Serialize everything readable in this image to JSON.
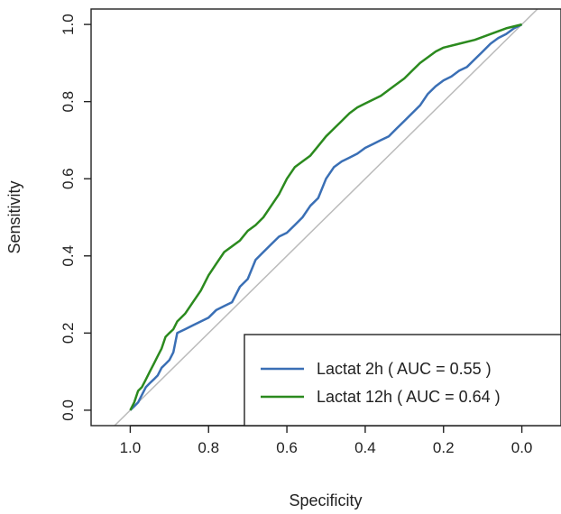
{
  "chart_data": {
    "type": "line",
    "title": "",
    "xlabel": "Specificity",
    "ylabel": "Sensitivity",
    "x_reversed": true,
    "xlim": [
      1.1,
      -0.1
    ],
    "ylim": [
      -0.04,
      1.04
    ],
    "x_ticks": [
      1.0,
      0.8,
      0.6,
      0.4,
      0.2,
      0.0
    ],
    "x_tick_labels": [
      "1.0",
      "0.8",
      "0.6",
      "0.4",
      "0.2",
      "0.0"
    ],
    "y_ticks": [
      0.0,
      0.2,
      0.4,
      0.6,
      0.8,
      1.0
    ],
    "y_tick_labels": [
      "0.0",
      "0.2",
      "0.4",
      "0.6",
      "0.8",
      "1.0"
    ],
    "grid": false,
    "legend_position": "bottom-right",
    "reference_line": {
      "from": [
        1.0,
        0.0
      ],
      "to": [
        0.0,
        1.0
      ],
      "color": "#bbbbbb"
    },
    "series": [
      {
        "name": "Lactat 2h ( AUC = 0.55 )",
        "color": "#3a6fb5",
        "points": [
          [
            1.0,
            0.0
          ],
          [
            0.99,
            0.01
          ],
          [
            0.98,
            0.02
          ],
          [
            0.97,
            0.04
          ],
          [
            0.96,
            0.06
          ],
          [
            0.95,
            0.07
          ],
          [
            0.94,
            0.08
          ],
          [
            0.93,
            0.09
          ],
          [
            0.92,
            0.11
          ],
          [
            0.91,
            0.12
          ],
          [
            0.9,
            0.13
          ],
          [
            0.89,
            0.15
          ],
          [
            0.88,
            0.2
          ],
          [
            0.86,
            0.21
          ],
          [
            0.84,
            0.22
          ],
          [
            0.82,
            0.23
          ],
          [
            0.8,
            0.24
          ],
          [
            0.78,
            0.26
          ],
          [
            0.76,
            0.27
          ],
          [
            0.74,
            0.28
          ],
          [
            0.72,
            0.32
          ],
          [
            0.7,
            0.34
          ],
          [
            0.68,
            0.39
          ],
          [
            0.66,
            0.41
          ],
          [
            0.64,
            0.43
          ],
          [
            0.62,
            0.45
          ],
          [
            0.6,
            0.46
          ],
          [
            0.58,
            0.48
          ],
          [
            0.56,
            0.5
          ],
          [
            0.54,
            0.53
          ],
          [
            0.52,
            0.55
          ],
          [
            0.5,
            0.6
          ],
          [
            0.48,
            0.63
          ],
          [
            0.46,
            0.645
          ],
          [
            0.44,
            0.655
          ],
          [
            0.42,
            0.665
          ],
          [
            0.4,
            0.68
          ],
          [
            0.38,
            0.69
          ],
          [
            0.36,
            0.7
          ],
          [
            0.34,
            0.71
          ],
          [
            0.32,
            0.73
          ],
          [
            0.3,
            0.75
          ],
          [
            0.28,
            0.77
          ],
          [
            0.26,
            0.79
          ],
          [
            0.24,
            0.82
          ],
          [
            0.22,
            0.84
          ],
          [
            0.2,
            0.855
          ],
          [
            0.18,
            0.865
          ],
          [
            0.16,
            0.88
          ],
          [
            0.14,
            0.89
          ],
          [
            0.12,
            0.91
          ],
          [
            0.1,
            0.93
          ],
          [
            0.08,
            0.95
          ],
          [
            0.06,
            0.965
          ],
          [
            0.04,
            0.975
          ],
          [
            0.02,
            0.99
          ],
          [
            0.0,
            1.0
          ]
        ]
      },
      {
        "name": "Lactat 12h ( AUC = 0.64 )",
        "color": "#2b8a1e",
        "points": [
          [
            1.0,
            0.0
          ],
          [
            0.99,
            0.02
          ],
          [
            0.98,
            0.05
          ],
          [
            0.97,
            0.06
          ],
          [
            0.96,
            0.08
          ],
          [
            0.95,
            0.1
          ],
          [
            0.94,
            0.12
          ],
          [
            0.93,
            0.14
          ],
          [
            0.92,
            0.16
          ],
          [
            0.91,
            0.19
          ],
          [
            0.9,
            0.2
          ],
          [
            0.89,
            0.21
          ],
          [
            0.88,
            0.23
          ],
          [
            0.86,
            0.25
          ],
          [
            0.84,
            0.28
          ],
          [
            0.82,
            0.31
          ],
          [
            0.8,
            0.35
          ],
          [
            0.78,
            0.38
          ],
          [
            0.76,
            0.41
          ],
          [
            0.72,
            0.44
          ],
          [
            0.7,
            0.465
          ],
          [
            0.68,
            0.48
          ],
          [
            0.66,
            0.5
          ],
          [
            0.64,
            0.53
          ],
          [
            0.62,
            0.56
          ],
          [
            0.6,
            0.6
          ],
          [
            0.58,
            0.63
          ],
          [
            0.56,
            0.645
          ],
          [
            0.54,
            0.66
          ],
          [
            0.52,
            0.685
          ],
          [
            0.5,
            0.71
          ],
          [
            0.48,
            0.73
          ],
          [
            0.46,
            0.75
          ],
          [
            0.44,
            0.77
          ],
          [
            0.42,
            0.785
          ],
          [
            0.4,
            0.795
          ],
          [
            0.38,
            0.805
          ],
          [
            0.36,
            0.815
          ],
          [
            0.34,
            0.83
          ],
          [
            0.32,
            0.845
          ],
          [
            0.3,
            0.86
          ],
          [
            0.28,
            0.88
          ],
          [
            0.26,
            0.9
          ],
          [
            0.24,
            0.915
          ],
          [
            0.22,
            0.93
          ],
          [
            0.2,
            0.94
          ],
          [
            0.16,
            0.95
          ],
          [
            0.12,
            0.96
          ],
          [
            0.08,
            0.975
          ],
          [
            0.04,
            0.99
          ],
          [
            0.0,
            1.0
          ]
        ]
      }
    ]
  }
}
